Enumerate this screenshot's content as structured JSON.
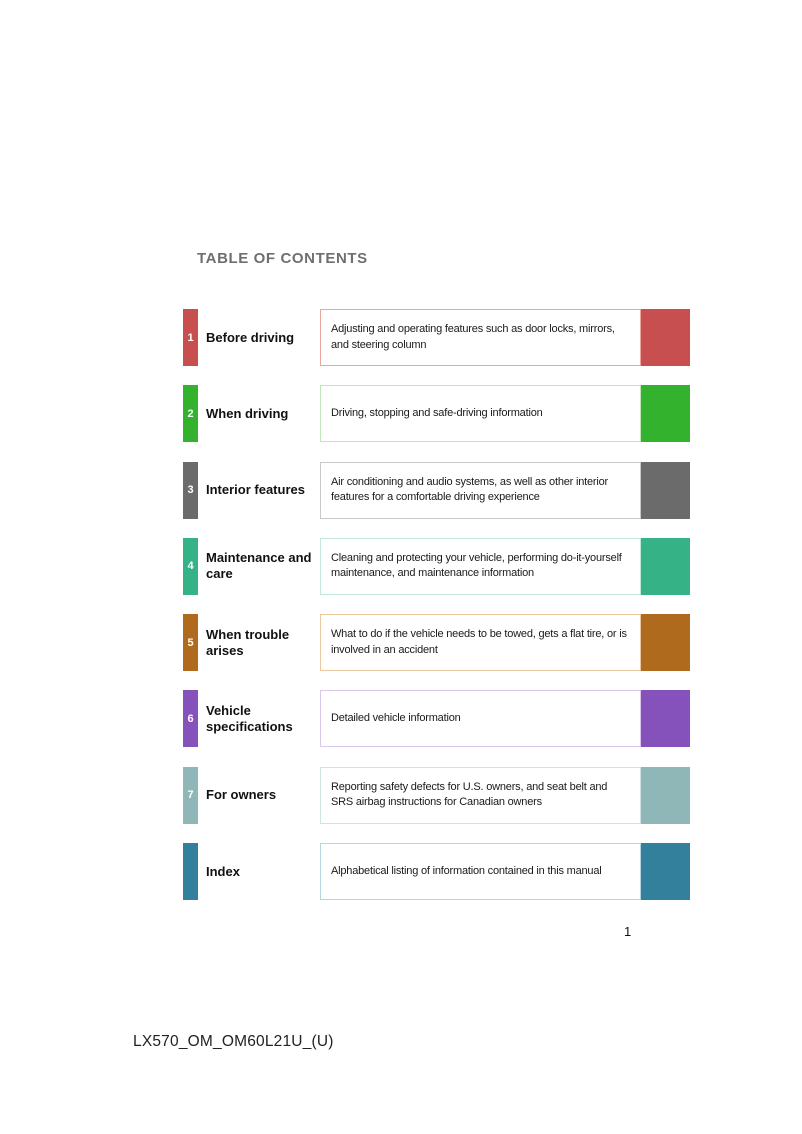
{
  "page": {
    "title": "TABLE OF CONTENTS",
    "page_number": "1",
    "footer_code": "LX570_OM_OM60L21U_(U)"
  },
  "toc": {
    "rows": [
      {
        "number": "1",
        "label": "Before driving",
        "description": "Adjusting and operating features such as door locks, mirrors, and steering column",
        "color": "#C84F50",
        "border_color": "#EBA79E"
      },
      {
        "number": "2",
        "label": "When driving",
        "description": "Driving, stopping and safe-driving information",
        "color": "#33B22D",
        "border_color": "#BFE7BA"
      },
      {
        "number": "3",
        "label": "Interior features",
        "description": "Air conditioning and audio systems, as well as other interior features for a comfortable driving experience",
        "color": "#6B6B6B",
        "border_color": "#C9C9C9"
      },
      {
        "number": "4",
        "label": "Maintenance and care",
        "description": "Cleaning and protecting your vehicle, performing do-it-yourself maintenance, and maintenance information",
        "color": "#35B387",
        "border_color": "#C2E8DA"
      },
      {
        "number": "5",
        "label": "When trouble arises",
        "description": "What to do if the vehicle needs to be towed, gets a flat tire, or is involved in an accident",
        "color": "#B06A1E",
        "border_color": "#EAC9A0"
      },
      {
        "number": "6",
        "label": "Vehicle specifications",
        "description": "Detailed vehicle information",
        "color": "#8551BA",
        "border_color": "#D9C8EC"
      },
      {
        "number": "7",
        "label": "For owners",
        "description": "Reporting safety defects for U.S. owners, and seat belt and SRS airbag instructions for Canadian owners",
        "color": "#8FB7B7",
        "border_color": "#CFE3E3"
      },
      {
        "number": "",
        "label": "Index",
        "description": "Alphabetical listing of information contained in this manual",
        "color": "#32809B",
        "border_color": "#B5D6E0"
      }
    ]
  }
}
